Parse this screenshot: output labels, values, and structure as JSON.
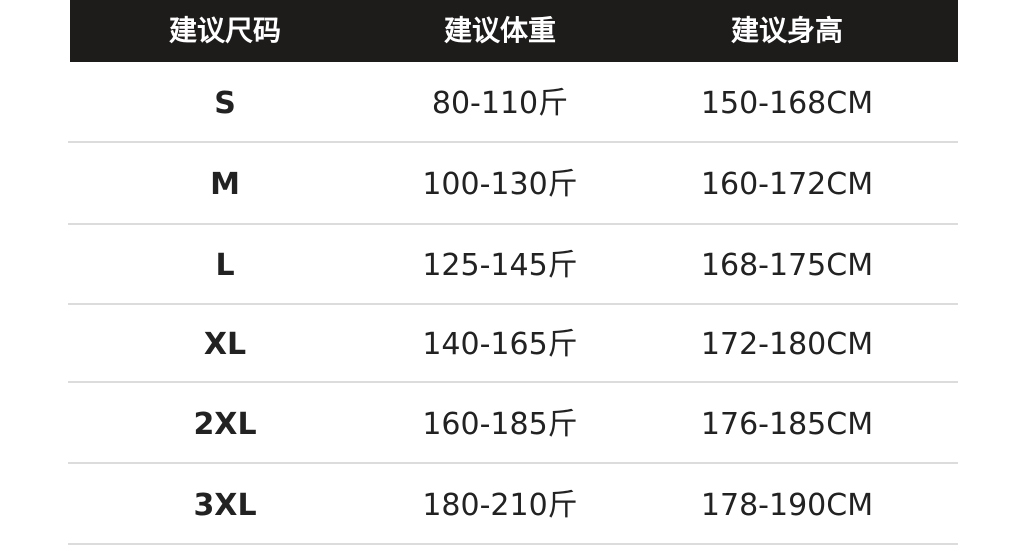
{
  "table": {
    "headers": [
      "建议尺码",
      "建议体重",
      "建议身高"
    ],
    "rows": [
      [
        "S",
        "80-110斤",
        "150-168CM"
      ],
      [
        "M",
        "100-130斤",
        "160-172CM"
      ],
      [
        "L",
        "125-145斤",
        "168-175CM"
      ],
      [
        "XL",
        "140-165斤",
        "172-180CM"
      ],
      [
        "2XL",
        "160-185斤",
        "176-185CM"
      ],
      [
        "3XL",
        "180-210斤",
        "178-190CM"
      ]
    ]
  },
  "colors": {
    "header_bg": "#1e1b1b",
    "header_text": "#ffffff",
    "divider": "#dcdcdc"
  }
}
